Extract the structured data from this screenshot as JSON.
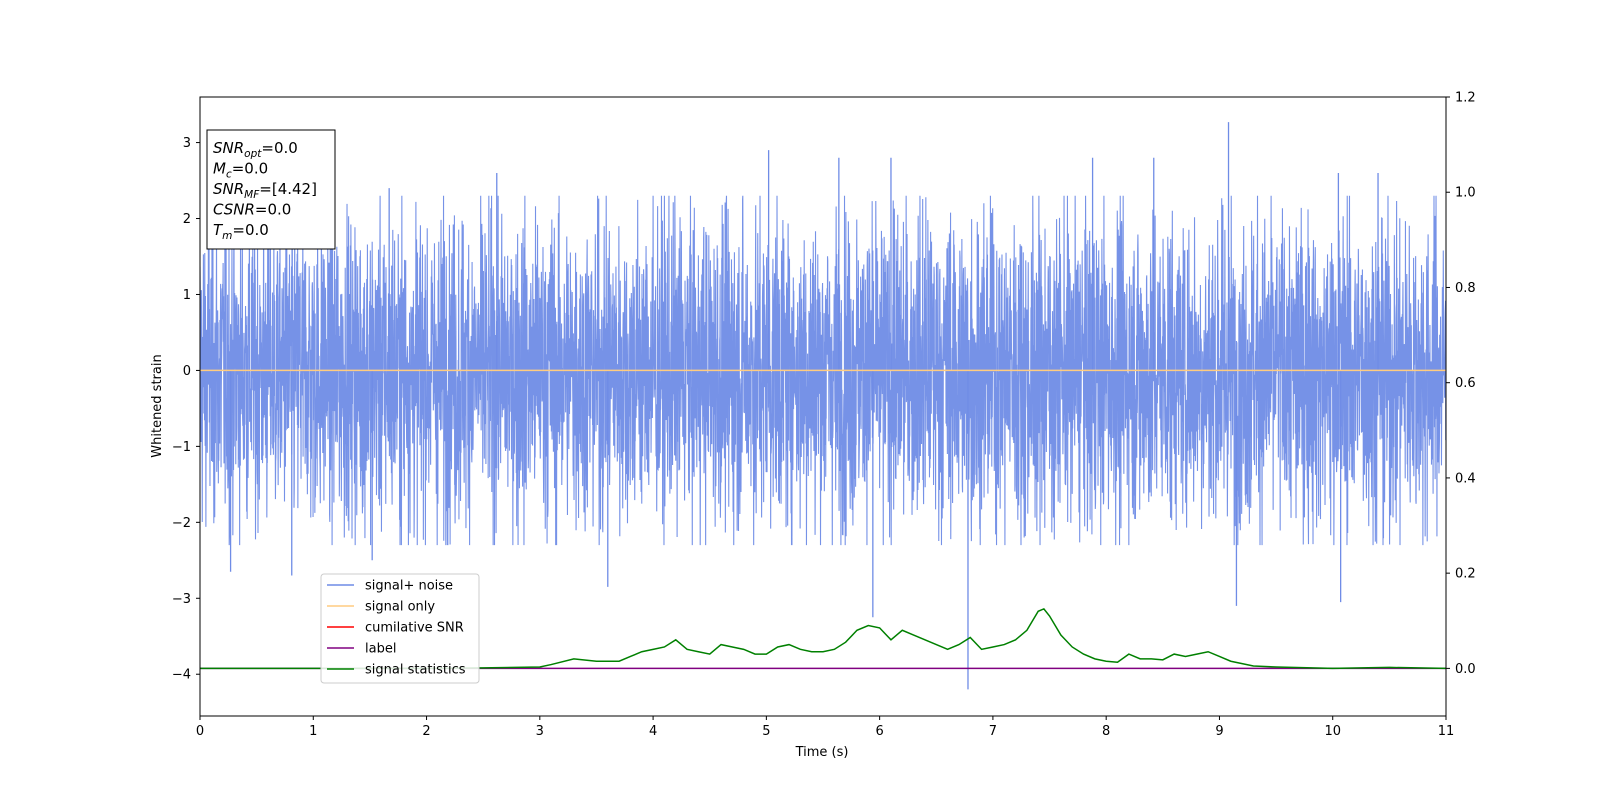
{
  "chart_data": {
    "type": "line",
    "xlabel": "Time (s)",
    "ylabel": "Whitened strain",
    "xlim": [
      0,
      11
    ],
    "ylim": [
      -4.55,
      3.6
    ],
    "y2lim": [
      -0.1,
      1.2
    ],
    "xticks": [
      0,
      1,
      2,
      3,
      4,
      5,
      6,
      7,
      8,
      9,
      10,
      11
    ],
    "yticks": [
      -4,
      -3,
      -2,
      -1,
      0,
      1,
      2,
      3
    ],
    "y2ticks": [
      0.0,
      0.2,
      0.4,
      0.6,
      0.8,
      1.0,
      1.2
    ],
    "y2ticklabels": [
      "0.0",
      "0.2",
      "0.4",
      "0.6",
      "0.8",
      "1.0",
      "1.2"
    ],
    "grid": false,
    "legend_position": "lower-left",
    "info_box": [
      {
        "base": "SNR",
        "sub": "opt",
        "value": "=0.0"
      },
      {
        "base": "M",
        "sub": "c",
        "value": "=0.0"
      },
      {
        "base": "SNR",
        "sub": "MF",
        "value": "=[4.42]"
      },
      {
        "base": "CSNR",
        "sub": "",
        "value": "=0.0"
      },
      {
        "base": "T",
        "sub": "m",
        "value": "=0.0"
      }
    ],
    "legend": [
      {
        "label": "signal+ noise",
        "color": "#6f8ce6"
      },
      {
        "label": "signal only",
        "color": "#ffcc80"
      },
      {
        "label": "cumilative SNR",
        "color": "#ff0000"
      },
      {
        "label": "label",
        "color": "#800080"
      },
      {
        "label": "signal statistics",
        "color": "#008000"
      }
    ],
    "series": [
      {
        "name": "signal+ noise",
        "axis": "left",
        "color": "#6f8ce6",
        "style": "dense noise trace, approx. range -4.2 to 3.3",
        "spikes": [
          [
            0.27,
            -2.65
          ],
          [
            0.81,
            -2.7
          ],
          [
            1.52,
            -2.5
          ],
          [
            1.67,
            2.4
          ],
          [
            2.62,
            2.6
          ],
          [
            3.6,
            -2.85
          ],
          [
            5.02,
            2.9
          ],
          [
            5.64,
            2.8
          ],
          [
            5.94,
            -3.25
          ],
          [
            6.1,
            2.8
          ],
          [
            6.78,
            -4.2
          ],
          [
            7.88,
            2.8
          ],
          [
            8.42,
            2.8
          ],
          [
            9.08,
            3.27
          ],
          [
            9.15,
            -3.1
          ],
          [
            10.05,
            2.6
          ],
          [
            10.4,
            2.6
          ],
          [
            10.07,
            -3.05
          ]
        ]
      },
      {
        "name": "signal only",
        "axis": "left",
        "color": "#ffcc80",
        "x": [
          0,
          11
        ],
        "y": [
          0,
          0
        ]
      },
      {
        "name": "label",
        "axis": "right",
        "color": "#800080",
        "x": [
          0,
          11
        ],
        "y": [
          0,
          0
        ]
      },
      {
        "name": "signal statistics",
        "axis": "right",
        "color": "#008000",
        "x": [
          0,
          0.5,
          1,
          1.5,
          2,
          2.5,
          3,
          3.1,
          3.3,
          3.5,
          3.7,
          3.8,
          3.9,
          4,
          4.1,
          4.2,
          4.3,
          4.4,
          4.5,
          4.6,
          4.7,
          4.8,
          4.9,
          5,
          5.1,
          5.2,
          5.3,
          5.4,
          5.5,
          5.6,
          5.7,
          5.8,
          5.9,
          6,
          6.1,
          6.2,
          6.3,
          6.4,
          6.5,
          6.6,
          6.7,
          6.8,
          6.9,
          7,
          7.1,
          7.2,
          7.3,
          7.4,
          7.45,
          7.5,
          7.6,
          7.7,
          7.8,
          7.9,
          8,
          8.1,
          8.2,
          8.3,
          8.4,
          8.5,
          8.6,
          8.7,
          8.8,
          8.9,
          9,
          9.1,
          9.2,
          9.3,
          9.5,
          10,
          10.5,
          11
        ],
        "y": [
          0.0,
          0.0,
          0.0,
          0.0,
          0.0,
          0.001,
          0.003,
          0.008,
          0.02,
          0.015,
          0.015,
          0.025,
          0.035,
          0.04,
          0.045,
          0.06,
          0.04,
          0.035,
          0.03,
          0.05,
          0.045,
          0.04,
          0.03,
          0.03,
          0.045,
          0.05,
          0.04,
          0.035,
          0.035,
          0.04,
          0.055,
          0.08,
          0.09,
          0.085,
          0.06,
          0.08,
          0.07,
          0.06,
          0.05,
          0.04,
          0.05,
          0.065,
          0.04,
          0.045,
          0.05,
          0.06,
          0.08,
          0.12,
          0.125,
          0.11,
          0.07,
          0.045,
          0.03,
          0.02,
          0.015,
          0.013,
          0.03,
          0.02,
          0.02,
          0.018,
          0.03,
          0.025,
          0.03,
          0.035,
          0.025,
          0.015,
          0.01,
          0.005,
          0.003,
          0.0,
          0.002,
          0.0
        ]
      }
    ]
  }
}
